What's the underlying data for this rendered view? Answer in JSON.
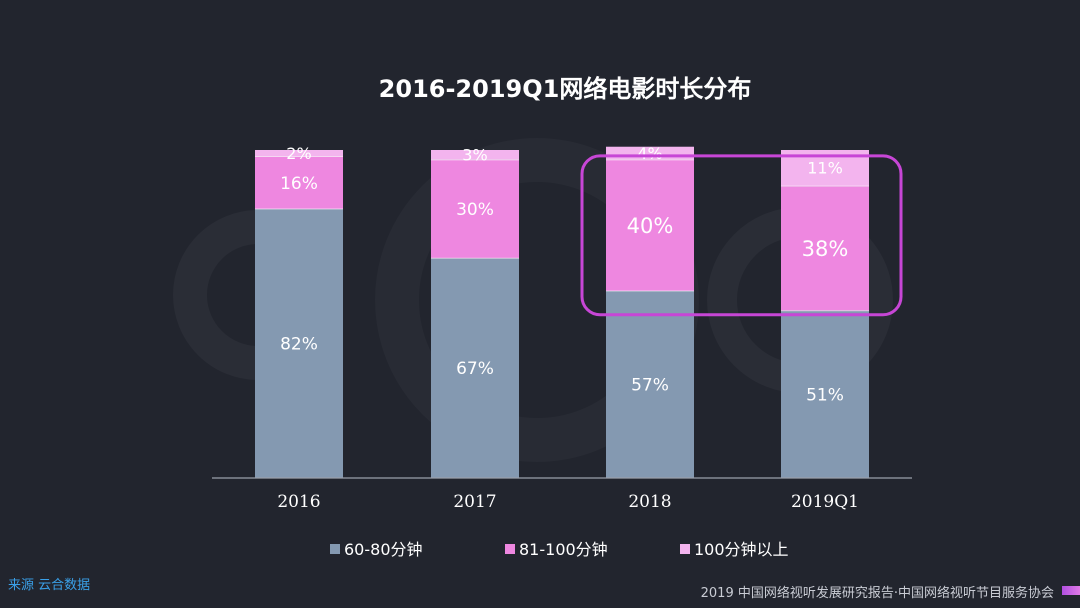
{
  "chart_data": {
    "type": "bar",
    "stacked": true,
    "title": "2016-2019Q1网络电影时长分布",
    "categories": [
      "2016",
      "2017",
      "2018",
      "2019Q1"
    ],
    "series": [
      {
        "name": "60-80分钟",
        "values": [
          82,
          67,
          57,
          51
        ],
        "labels": [
          "82%",
          "67%",
          "57%",
          "51%"
        ],
        "color": "#8499b1"
      },
      {
        "name": "81-100分钟",
        "values": [
          16,
          30,
          40,
          38
        ],
        "labels": [
          "16%",
          "30%",
          "40%",
          "38%"
        ],
        "color": "#ee87e0"
      },
      {
        "name": "100分钟以上",
        "values": [
          2,
          3,
          4,
          11
        ],
        "labels": [
          "2%",
          "3%",
          "4%",
          "11%"
        ],
        "color": "#f3b4ee"
      }
    ],
    "ylim": [
      0,
      100
    ],
    "grid": false,
    "legend_position": "bottom",
    "highlight_categories": [
      "2018",
      "2019Q1"
    ],
    "highlight_series": "81-100分钟",
    "highlight_color": "#c746d6"
  },
  "footer": {
    "source": "来源  云合数据",
    "credit": "2019 中国网络视听发展研究报告·中国网络视听节目服务协会"
  },
  "colors": {
    "background": "#22252e",
    "axis": "#9aa0ab",
    "accent": "#c746d6"
  }
}
